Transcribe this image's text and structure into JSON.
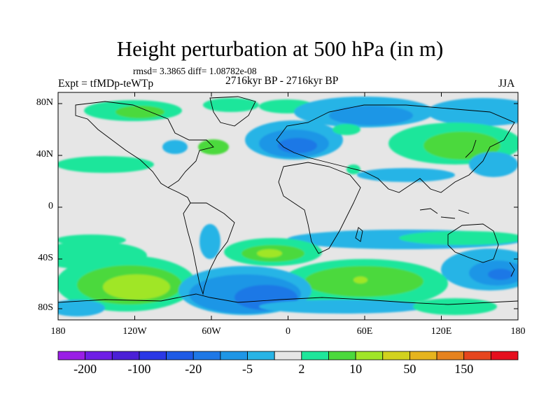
{
  "title": "Height perturbation at 500 hPa (in m)",
  "stats_line": "rmsd= 3.3865 diff= 1.08782e-08",
  "left_label": "Expt = tfMDp-teWTp",
  "center_label": "2716kyr BP - 2716kyr BP",
  "right_label": "JJA",
  "map": {
    "lat_ticks": [
      {
        "label": "80N"
      },
      {
        "label": "40N"
      },
      {
        "label": "0"
      },
      {
        "label": "40S"
      },
      {
        "label": "80S"
      }
    ],
    "lon_ticks": [
      {
        "label": "180"
      },
      {
        "label": "120W"
      },
      {
        "label": "60W"
      },
      {
        "label": "0"
      },
      {
        "label": "60E"
      },
      {
        "label": "120E"
      },
      {
        "label": "180"
      }
    ],
    "background_color": "#e6e6e6",
    "coastline_color": "#000000"
  },
  "colorbar": {
    "colors": [
      "#9a1ee6",
      "#6e1ee6",
      "#4b20d6",
      "#2a38e6",
      "#1e5ae6",
      "#1e78e6",
      "#1e96e6",
      "#28b4e6",
      "#e6e6e6",
      "#1ee69b",
      "#4bd93c",
      "#a0e628",
      "#d2d21e",
      "#e6b41e",
      "#e6821e",
      "#e6461e",
      "#e60f1e"
    ],
    "labels": [
      "-200",
      "-100",
      "-20",
      "-5",
      "2",
      "10",
      "50",
      "150"
    ]
  }
}
